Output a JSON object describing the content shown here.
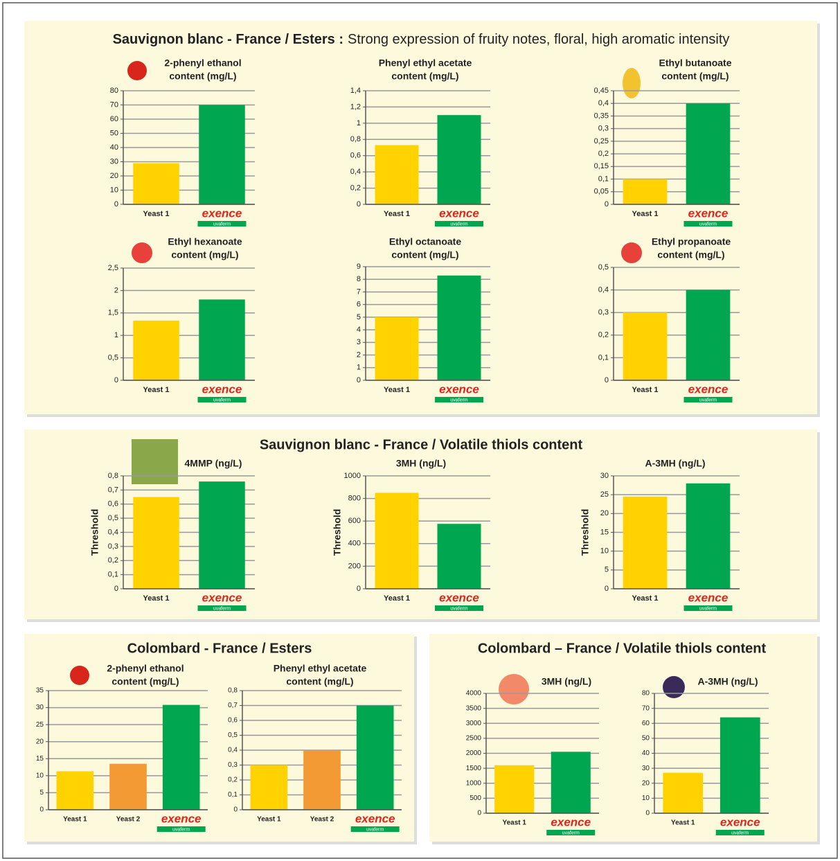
{
  "panels": [
    {
      "title": "Sauvignon blanc - France / Esters :",
      "subtitle": "Strong expression of fruity notes, floral, high aromatic intensity"
    },
    {
      "title": "Sauvignon blanc - France / Volatile thiols content"
    },
    {
      "title": "Colombard - France / Esters"
    },
    {
      "title": "Colombard – France / Volatile thiols content"
    }
  ],
  "brand_tagline": "uvaferm",
  "chart_data": [
    {
      "type": "bar",
      "title": [
        "2-phenyl ethanol",
        "content (mg/L)"
      ],
      "categories": [
        "Yeast 1",
        "exence"
      ],
      "values": [
        29,
        70
      ],
      "colors": [
        "#ffd200",
        "#00a650"
      ],
      "ylim": [
        0,
        80
      ],
      "yticks": [
        0,
        10,
        20,
        30,
        40,
        50,
        60,
        70,
        80
      ]
    },
    {
      "type": "bar",
      "title": [
        "Phenyl ethyl acetate",
        "content (mg/L)"
      ],
      "categories": [
        "Yeast 1",
        "exence"
      ],
      "values": [
        0.73,
        1.1
      ],
      "colors": [
        "#ffd200",
        "#00a650"
      ],
      "ylim": [
        0,
        1.4
      ],
      "yticks": [
        0,
        {
          "value": 0.2,
          "label": "0,2"
        },
        {
          "value": 0.4,
          "label": "0,4"
        },
        {
          "value": 0.6,
          "label": "0,6"
        },
        {
          "value": 0.8,
          "label": "0,8"
        },
        1,
        {
          "value": 1.2,
          "label": "1,2"
        },
        {
          "value": 1.4,
          "label": "1,4"
        }
      ]
    },
    {
      "type": "bar",
      "title": [
        "Ethyl butanoate",
        "content (mg/L)"
      ],
      "categories": [
        "Yeast 1",
        "exence"
      ],
      "values": [
        0.1,
        0.4
      ],
      "colors": [
        "#ffd200",
        "#00a650"
      ],
      "ylim": [
        0,
        0.45
      ],
      "yticks": [
        0,
        {
          "value": 0.05,
          "label": "0,05"
        },
        {
          "value": 0.1,
          "label": "0,1"
        },
        {
          "value": 0.15,
          "label": "0,15"
        },
        {
          "value": 0.2,
          "label": "0,2"
        },
        {
          "value": 0.25,
          "label": "0,25"
        },
        {
          "value": 0.3,
          "label": "0,3"
        },
        {
          "value": 0.35,
          "label": "0,35"
        },
        {
          "value": 0.4,
          "label": "0,4"
        },
        {
          "value": 0.45,
          "label": "0,45"
        }
      ]
    },
    {
      "type": "bar",
      "title": [
        "Ethyl hexanoate",
        "content (mg/L)"
      ],
      "categories": [
        "Yeast 1",
        "exence"
      ],
      "values": [
        1.33,
        1.8
      ],
      "colors": [
        "#ffd200",
        "#00a650"
      ],
      "ylim": [
        0,
        2.5
      ],
      "yticks": [
        0,
        {
          "value": 0.5,
          "label": "0,5"
        },
        1,
        {
          "value": 1.5,
          "label": "1,5"
        },
        2,
        {
          "value": 2.5,
          "label": "2,5"
        }
      ]
    },
    {
      "type": "bar",
      "title": [
        "Ethyl octanoate",
        "content (mg/L)"
      ],
      "categories": [
        "Yeast 1",
        "exence"
      ],
      "values": [
        5.0,
        8.3
      ],
      "colors": [
        "#ffd200",
        "#00a650"
      ],
      "ylim": [
        0,
        9
      ],
      "yticks": [
        0,
        1,
        2,
        3,
        4,
        5,
        6,
        7,
        8,
        9
      ]
    },
    {
      "type": "bar",
      "title": [
        "Ethyl propanoate",
        "content (mg/L)"
      ],
      "categories": [
        "Yeast 1",
        "exence"
      ],
      "values": [
        0.3,
        0.4
      ],
      "colors": [
        "#ffd200",
        "#00a650"
      ],
      "ylim": [
        0,
        0.5
      ],
      "yticks": [
        0,
        {
          "value": 0.1,
          "label": "0,1"
        },
        {
          "value": 0.2,
          "label": "0,2"
        },
        {
          "value": 0.3,
          "label": "0,3"
        },
        {
          "value": 0.4,
          "label": "0,4"
        },
        {
          "value": 0.5,
          "label": "0,5"
        }
      ]
    },
    {
      "type": "bar",
      "title": [
        "4MMP (ng/L)"
      ],
      "ylabel": "Threshold",
      "categories": [
        "Yeast 1",
        "exence"
      ],
      "values": [
        0.65,
        0.76
      ],
      "colors": [
        "#ffd200",
        "#00a650"
      ],
      "ylim": [
        0,
        0.8
      ],
      "yticks": [
        0,
        {
          "value": 0.1,
          "label": "0,1"
        },
        {
          "value": 0.2,
          "label": "0,2"
        },
        {
          "value": 0.3,
          "label": "0,3"
        },
        {
          "value": 0.4,
          "label": "0,4"
        },
        {
          "value": 0.5,
          "label": "0,5"
        },
        {
          "value": 0.6,
          "label": "0,6"
        },
        {
          "value": 0.7,
          "label": "0,7"
        },
        {
          "value": 0.8,
          "label": "0,8"
        }
      ]
    },
    {
      "type": "bar",
      "title": [
        "3MH (ng/L)"
      ],
      "ylabel": "Threshold",
      "categories": [
        "Yeast 1",
        "exence"
      ],
      "values": [
        850,
        575
      ],
      "colors": [
        "#ffd200",
        "#00a650"
      ],
      "ylim": [
        0,
        1000
      ],
      "yticks": [
        0,
        200,
        400,
        600,
        800,
        1000
      ]
    },
    {
      "type": "bar",
      "title": [
        "A-3MH (ng/L)"
      ],
      "ylabel": "Threshold",
      "categories": [
        "Yeast 1",
        "exence"
      ],
      "values": [
        24.5,
        28
      ],
      "colors": [
        "#ffd200",
        "#00a650"
      ],
      "ylim": [
        0,
        30
      ],
      "yticks": [
        0,
        5,
        10,
        15,
        20,
        25,
        30
      ]
    },
    {
      "type": "bar",
      "title": [
        "2-phenyl ethanol",
        "content (mg/L)"
      ],
      "categories": [
        "Yeast 1",
        "Yeast 2",
        "exence"
      ],
      "values": [
        11.3,
        13.5,
        30.8
      ],
      "colors": [
        "#ffd200",
        "#f39a34",
        "#00a650"
      ],
      "ylim": [
        0,
        35
      ],
      "yticks": [
        0,
        5,
        10,
        15,
        20,
        25,
        30,
        35
      ]
    },
    {
      "type": "bar",
      "title": [
        "Phenyl ethyl acetate",
        "content (mg/L)"
      ],
      "categories": [
        "Yeast 1",
        "Yeast 2",
        "exence"
      ],
      "values": [
        0.3,
        0.4,
        0.7
      ],
      "colors": [
        "#ffd200",
        "#f39a34",
        "#00a650"
      ],
      "ylim": [
        0,
        0.8
      ],
      "yticks": [
        0,
        {
          "value": 0.1,
          "label": "0,1"
        },
        {
          "value": 0.2,
          "label": "0,2"
        },
        {
          "value": 0.3,
          "label": "0,3"
        },
        {
          "value": 0.4,
          "label": "0,4"
        },
        {
          "value": 0.5,
          "label": "0,5"
        },
        {
          "value": 0.6,
          "label": "0,6"
        },
        {
          "value": 0.7,
          "label": "0,7"
        },
        {
          "value": 0.8,
          "label": "0,8"
        }
      ]
    },
    {
      "type": "bar",
      "title": [
        "3MH (ng/L)"
      ],
      "categories": [
        "Yeast 1",
        "exence"
      ],
      "values": [
        1600,
        2050
      ],
      "colors": [
        "#ffd200",
        "#00a650"
      ],
      "ylim": [
        0,
        4000
      ],
      "yticks": [
        0,
        500,
        1000,
        1500,
        2000,
        2500,
        3000,
        3500,
        4000
      ]
    },
    {
      "type": "bar",
      "title": [
        "A-3MH (ng/L)"
      ],
      "categories": [
        "Yeast 1",
        "exence"
      ],
      "values": [
        27,
        64
      ],
      "colors": [
        "#ffd200",
        "#00a650"
      ],
      "ylim": [
        0,
        80
      ],
      "yticks": [
        0,
        10,
        20,
        30,
        40,
        50,
        60,
        70,
        80
      ]
    }
  ]
}
